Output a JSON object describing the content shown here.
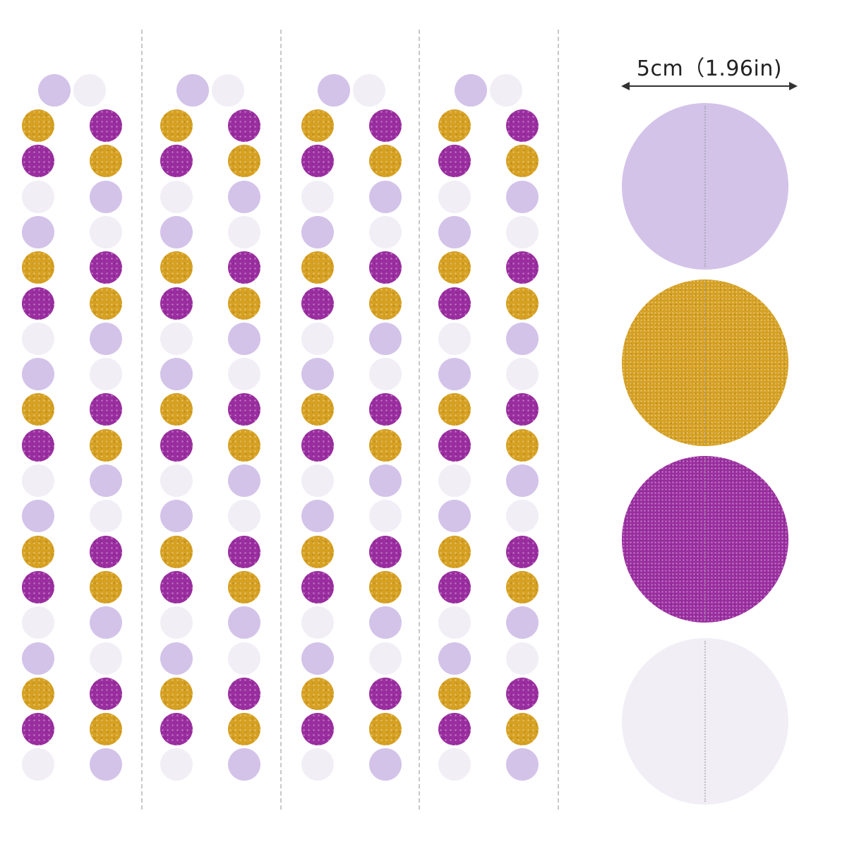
{
  "size_label": "5cm（1.96in)",
  "colors": {
    "lavender": "#d3c3e9",
    "white": "#f1eef6",
    "gold": "#d6a021",
    "purple": "#9a2da0",
    "divider": "#c8c8c8"
  },
  "garland": {
    "strand_count": 4,
    "top_pair": [
      "lavender",
      "white"
    ],
    "left_column": [
      "gold",
      "purple",
      "white",
      "lavender",
      "gold",
      "purple",
      "white",
      "lavender",
      "gold",
      "purple",
      "white",
      "lavender",
      "gold",
      "purple",
      "white",
      "lavender",
      "gold",
      "purple",
      "white"
    ],
    "right_column": [
      "purple",
      "gold",
      "lavender",
      "white",
      "purple",
      "gold",
      "lavender",
      "white",
      "purple",
      "gold",
      "lavender",
      "white",
      "purple",
      "gold",
      "lavender",
      "white",
      "purple",
      "gold",
      "lavender"
    ]
  },
  "swatches": [
    "lavender",
    "gold",
    "purple",
    "white"
  ]
}
